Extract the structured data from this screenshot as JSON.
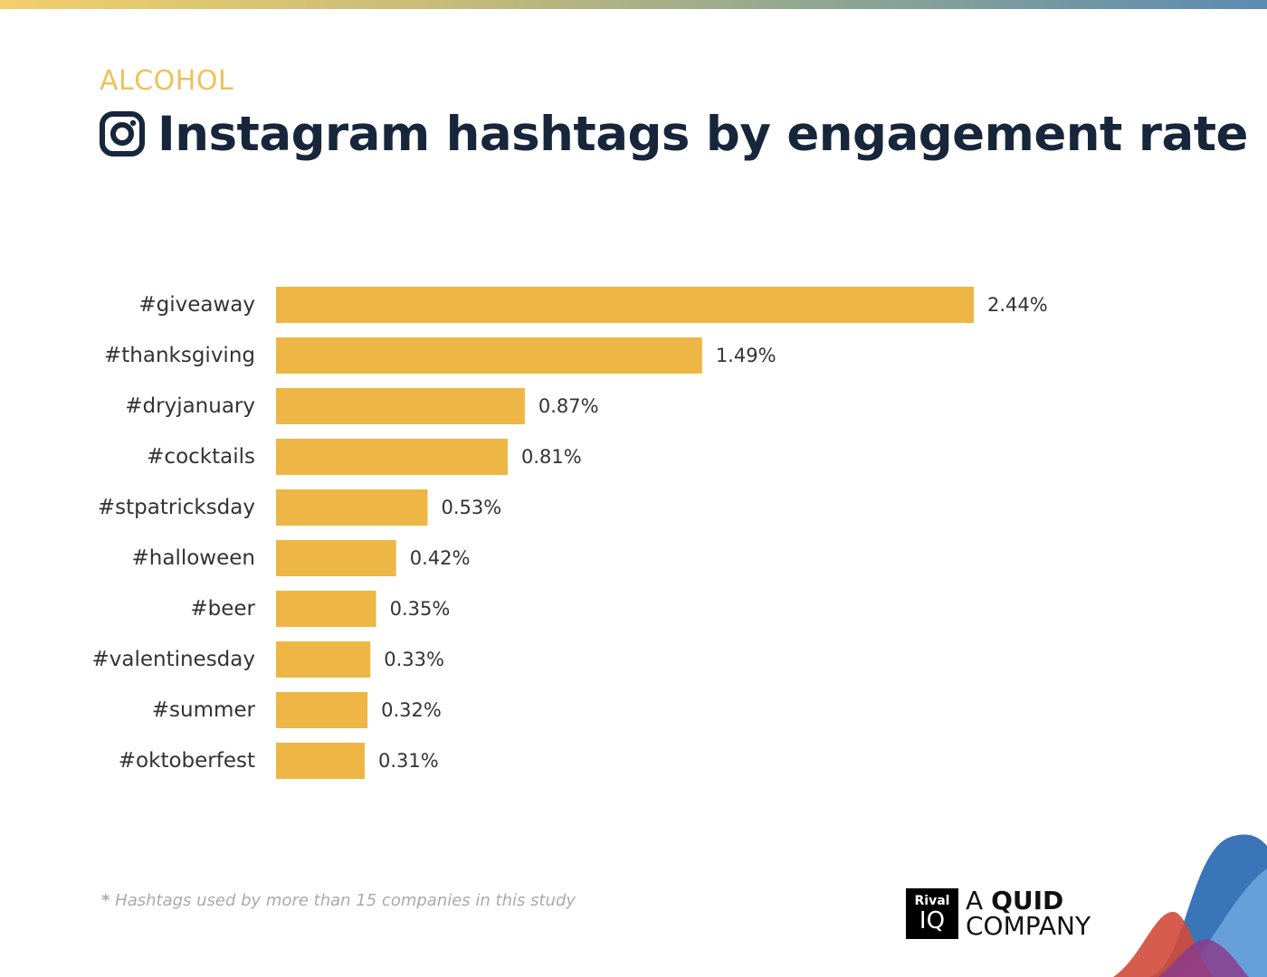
{
  "header": {
    "category": "ALCOHOL",
    "title": "Instagram hashtags by engagement rate"
  },
  "footnote": {
    "marker": "*",
    "text": "Hashtags used by more than 15 companies in this study"
  },
  "logo": {
    "box_top": "Rival",
    "box_bottom": "IQ",
    "line1_prefix": "A",
    "line1_bold": "QUID",
    "line2": "COMPANY"
  },
  "colors": {
    "bar": "#eeb644",
    "category": "#eec258",
    "title": "#17263b",
    "label": "#333333"
  },
  "chart_data": {
    "type": "bar",
    "orientation": "horizontal",
    "title": "Instagram hashtags by engagement rate",
    "xlabel": "",
    "ylabel": "",
    "value_suffix": "%",
    "xlim": [
      0,
      2.44
    ],
    "grid": false,
    "categories": [
      "#giveaway",
      "#thanksgiving",
      "#dryjanuary",
      "#cocktails",
      "#stpatricksday",
      "#halloween",
      "#beer",
      "#valentinesday",
      "#summer",
      "#oktoberfest"
    ],
    "values": [
      2.44,
      1.49,
      0.87,
      0.81,
      0.53,
      0.42,
      0.35,
      0.33,
      0.32,
      0.31
    ],
    "value_labels": [
      "2.44%",
      "1.49%",
      "0.87%",
      "0.81%",
      "0.53%",
      "0.42%",
      "0.35%",
      "0.33%",
      "0.32%",
      "0.31%"
    ]
  }
}
